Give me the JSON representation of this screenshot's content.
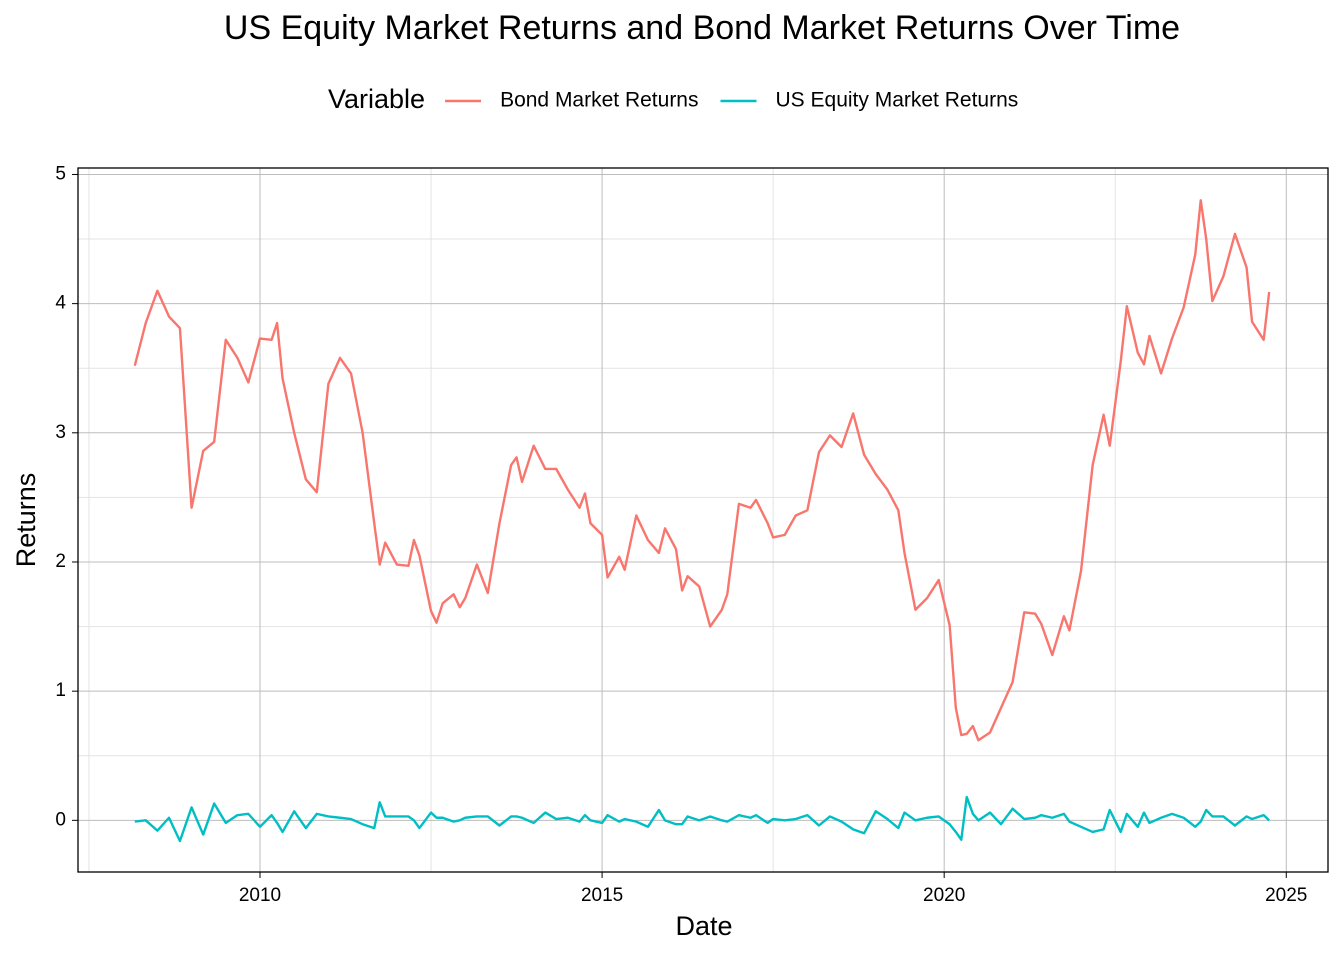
{
  "chart_data": {
    "type": "line",
    "title": "US Equity Market Returns and Bond Market Returns Over Time",
    "x_label": "Date",
    "y_label": "Returns",
    "legend_title": "Variable",
    "legend_position": "top",
    "grid": true,
    "xlim": [
      2007.34,
      2025.61
    ],
    "xticks": [
      2010,
      2015,
      2020,
      2025
    ],
    "ylim": [
      -0.4,
      5.05
    ],
    "yticks": [
      0,
      1,
      2,
      3,
      4,
      5
    ],
    "x": [
      2008.17,
      2008.33,
      2008.5,
      2008.67,
      2008.83,
      2009.0,
      2009.17,
      2009.33,
      2009.5,
      2009.67,
      2009.83,
      2010.0,
      2010.17,
      2010.25,
      2010.33,
      2010.5,
      2010.67,
      2010.83,
      2011.0,
      2011.17,
      2011.33,
      2011.5,
      2011.67,
      2011.75,
      2011.83,
      2012.0,
      2012.17,
      2012.25,
      2012.33,
      2012.5,
      2012.58,
      2012.67,
      2012.83,
      2012.92,
      2013.0,
      2013.17,
      2013.33,
      2013.5,
      2013.67,
      2013.75,
      2013.83,
      2014.0,
      2014.17,
      2014.33,
      2014.5,
      2014.67,
      2014.75,
      2014.83,
      2015.0,
      2015.08,
      2015.25,
      2015.33,
      2015.5,
      2015.67,
      2015.83,
      2015.92,
      2016.08,
      2016.17,
      2016.25,
      2016.42,
      2016.58,
      2016.75,
      2016.83,
      2017.0,
      2017.17,
      2017.25,
      2017.42,
      2017.5,
      2017.67,
      2017.83,
      2018.0,
      2018.17,
      2018.33,
      2018.5,
      2018.67,
      2018.83,
      2019.0,
      2019.17,
      2019.33,
      2019.42,
      2019.58,
      2019.75,
      2019.92,
      2020.08,
      2020.17,
      2020.25,
      2020.33,
      2020.42,
      2020.5,
      2020.67,
      2020.83,
      2021.0,
      2021.17,
      2021.33,
      2021.42,
      2021.58,
      2021.75,
      2021.83,
      2022.0,
      2022.17,
      2022.33,
      2022.42,
      2022.58,
      2022.67,
      2022.83,
      2022.92,
      2023.0,
      2023.17,
      2023.33,
      2023.5,
      2023.67,
      2023.75,
      2023.83,
      2023.92,
      2024.08,
      2024.25,
      2024.42,
      2024.5,
      2024.67,
      2024.75
    ],
    "series": [
      {
        "name": "Bond Market Returns",
        "color": "#F8766D",
        "values": [
          3.52,
          3.85,
          4.1,
          3.9,
          3.81,
          2.42,
          2.86,
          2.93,
          3.72,
          3.58,
          3.39,
          3.73,
          3.72,
          3.85,
          3.42,
          3.0,
          2.64,
          2.54,
          3.38,
          3.58,
          3.46,
          3.0,
          2.3,
          1.98,
          2.15,
          1.98,
          1.97,
          2.17,
          2.05,
          1.62,
          1.53,
          1.68,
          1.75,
          1.65,
          1.72,
          1.98,
          1.76,
          2.3,
          2.75,
          2.81,
          2.62,
          2.9,
          2.72,
          2.72,
          2.56,
          2.42,
          2.53,
          2.3,
          2.21,
          1.88,
          2.04,
          1.94,
          2.36,
          2.17,
          2.07,
          2.26,
          2.1,
          1.78,
          1.89,
          1.81,
          1.5,
          1.63,
          1.75,
          2.45,
          2.42,
          2.48,
          2.3,
          2.19,
          2.21,
          2.36,
          2.4,
          2.85,
          2.98,
          2.89,
          3.15,
          2.83,
          2.68,
          2.56,
          2.4,
          2.07,
          1.63,
          1.72,
          1.86,
          1.51,
          0.87,
          0.66,
          0.67,
          0.73,
          0.62,
          0.68,
          0.87,
          1.07,
          1.61,
          1.6,
          1.52,
          1.28,
          1.58,
          1.47,
          1.93,
          2.75,
          3.14,
          2.9,
          3.55,
          3.98,
          3.62,
          3.53,
          3.75,
          3.46,
          3.73,
          3.97,
          4.38,
          4.8,
          4.5,
          4.02,
          4.21,
          4.54,
          4.28,
          3.86,
          3.72,
          4.09
        ]
      },
      {
        "name": "US Equity Market Returns",
        "color": "#00BFC4",
        "values": [
          -0.01,
          0.0,
          -0.08,
          0.02,
          -0.16,
          0.1,
          -0.11,
          0.13,
          -0.02,
          0.04,
          0.05,
          -0.05,
          0.04,
          -0.02,
          -0.09,
          0.07,
          -0.06,
          0.05,
          0.03,
          0.02,
          0.01,
          -0.03,
          -0.06,
          0.14,
          0.03,
          0.03,
          0.03,
          0.0,
          -0.06,
          0.06,
          0.02,
          0.02,
          -0.01,
          0.0,
          0.02,
          0.03,
          0.03,
          -0.04,
          0.03,
          0.03,
          0.02,
          -0.02,
          0.06,
          0.01,
          0.02,
          -0.01,
          0.04,
          0.0,
          -0.02,
          0.04,
          -0.01,
          0.01,
          -0.01,
          -0.05,
          0.08,
          0.0,
          -0.03,
          -0.03,
          0.03,
          0.0,
          0.03,
          0.0,
          -0.01,
          0.04,
          0.02,
          0.04,
          -0.02,
          0.01,
          0.0,
          0.01,
          0.04,
          -0.04,
          0.03,
          -0.01,
          -0.07,
          -0.1,
          0.07,
          0.01,
          -0.06,
          0.06,
          0.0,
          0.02,
          0.03,
          -0.03,
          -0.09,
          -0.15,
          0.18,
          0.05,
          0.0,
          0.06,
          -0.03,
          0.09,
          0.01,
          0.02,
          0.04,
          0.02,
          0.05,
          -0.01,
          -0.05,
          -0.09,
          -0.07,
          0.08,
          -0.09,
          0.05,
          -0.05,
          0.06,
          -0.02,
          0.02,
          0.05,
          0.02,
          -0.05,
          -0.01,
          0.08,
          0.03,
          0.03,
          -0.04,
          0.03,
          0.01,
          0.04,
          0.0
        ]
      }
    ]
  }
}
